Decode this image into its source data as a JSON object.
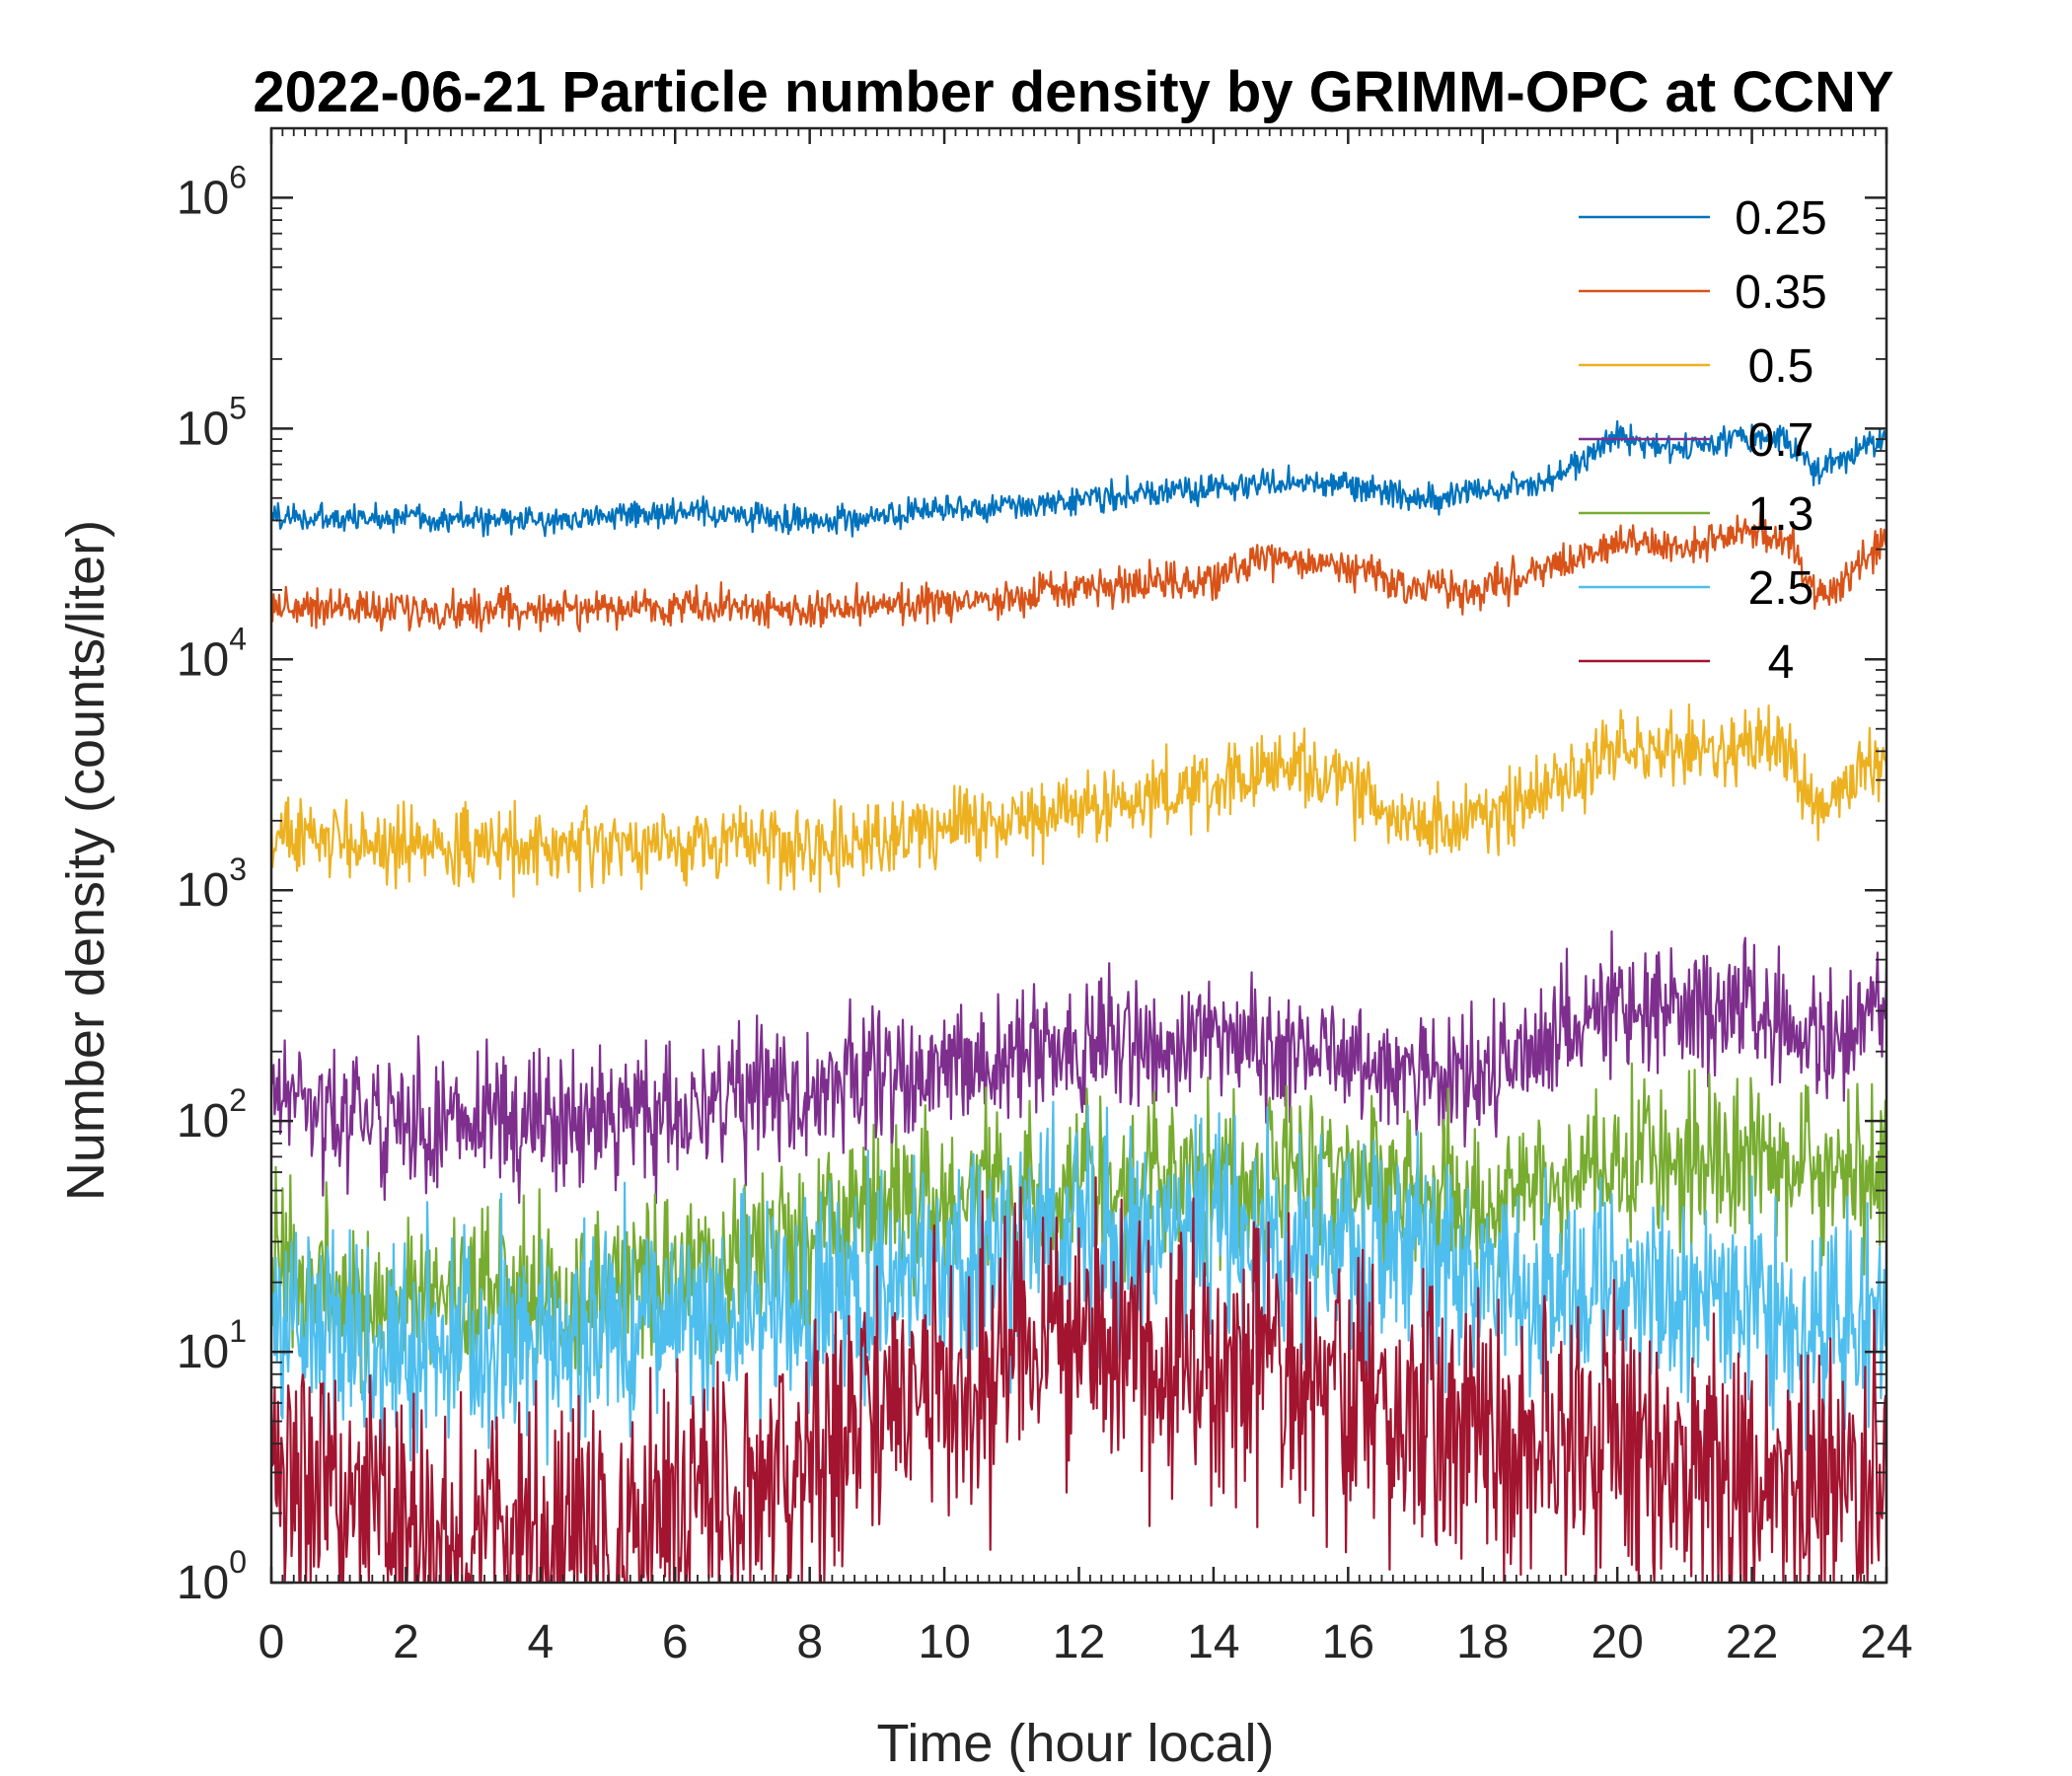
{
  "chart_data": {
    "type": "line",
    "title": "2022-06-21 Particle number density by GRIMM-OPC at CCNY",
    "xlabel": "Time (hour local)",
    "ylabel": "Number density (counts/liter)",
    "xlim": [
      0,
      24
    ],
    "ylim": [
      1,
      2000000
    ],
    "yscale": "log",
    "xticks": [
      "0",
      "2",
      "4",
      "6",
      "8",
      "10",
      "12",
      "14",
      "16",
      "18",
      "20",
      "22",
      "24"
    ],
    "yticks": [
      {
        "value": 1,
        "base": "10",
        "exp": "0"
      },
      {
        "value": 10,
        "base": "10",
        "exp": "1"
      },
      {
        "value": 100,
        "base": "10",
        "exp": "2"
      },
      {
        "value": 1000,
        "base": "10",
        "exp": "3"
      },
      {
        "value": 10000,
        "base": "10",
        "exp": "4"
      },
      {
        "value": 100000,
        "base": "10",
        "exp": "5"
      },
      {
        "value": 1000000,
        "base": "10",
        "exp": "6"
      }
    ],
    "legend_position": "top-right",
    "x": [
      0,
      1,
      2,
      3,
      4,
      5,
      6,
      7,
      8,
      9,
      10,
      11,
      12,
      13,
      14,
      15,
      16,
      17,
      18,
      19,
      20,
      21,
      22,
      22.5,
      23,
      24
    ],
    "series": [
      {
        "name": "0.25",
        "color": "#0072BD",
        "noise": 0.03,
        "values": [
          42000,
          40000,
          42000,
          40000,
          40000,
          42000,
          43000,
          42000,
          40000,
          41000,
          44000,
          46000,
          50000,
          52000,
          55000,
          58000,
          58000,
          50000,
          52000,
          60000,
          92000,
          80000,
          95000,
          90000,
          65000,
          90000
        ]
      },
      {
        "name": "0.35",
        "color": "#D95319",
        "noise": 0.04,
        "values": [
          17000,
          17000,
          16000,
          16500,
          16500,
          16500,
          17000,
          17000,
          16000,
          17000,
          17500,
          18500,
          20000,
          21000,
          22000,
          28000,
          25000,
          20000,
          20000,
          25000,
          32000,
          30000,
          36000,
          34000,
          18000,
          32000
        ]
      },
      {
        "name": "0.5",
        "color": "#EDB120",
        "noise": 0.08,
        "values": [
          1700,
          1650,
          1550,
          1550,
          1500,
          1500,
          1550,
          1700,
          1550,
          1700,
          1900,
          2000,
          2300,
          2500,
          2700,
          3500,
          2700,
          2000,
          2000,
          2800,
          4000,
          4000,
          4300,
          4000,
          2200,
          3800
        ]
      },
      {
        "name": "0.7",
        "color": "#7E2F8E",
        "noise": 0.14,
        "values": [
          130,
          110,
          100,
          95,
          100,
          105,
          110,
          120,
          140,
          160,
          180,
          190,
          210,
          210,
          220,
          210,
          200,
          170,
          150,
          220,
          320,
          300,
          300,
          260,
          200,
          300
        ]
      },
      {
        "name": "1.3",
        "color": "#77AC30",
        "noise": 0.18,
        "values": [
          22,
          17,
          16,
          17,
          17,
          19,
          20,
          22,
          32,
          42,
          46,
          48,
          52,
          52,
          56,
          62,
          55,
          52,
          42,
          52,
          72,
          70,
          72,
          65,
          55,
          62
        ]
      },
      {
        "name": "2.5",
        "color": "#4DBEEE",
        "noise": 0.24,
        "values": [
          13,
          11,
          10,
          10,
          11,
          12,
          13,
          14,
          16,
          20,
          24,
          28,
          32,
          30,
          30,
          32,
          28,
          24,
          20,
          18,
          18,
          16,
          16,
          15,
          14,
          14
        ]
      },
      {
        "name": "4",
        "color": "#A2142F",
        "noise": 0.3,
        "values": [
          2.5,
          2,
          1.5,
          1.3,
          1.5,
          1.6,
          2,
          2.5,
          3,
          6,
          7,
          9,
          10,
          9,
          9,
          8,
          7,
          5,
          4,
          4,
          3.5,
          3,
          3,
          2.8,
          2.5,
          2.5
        ]
      }
    ]
  }
}
